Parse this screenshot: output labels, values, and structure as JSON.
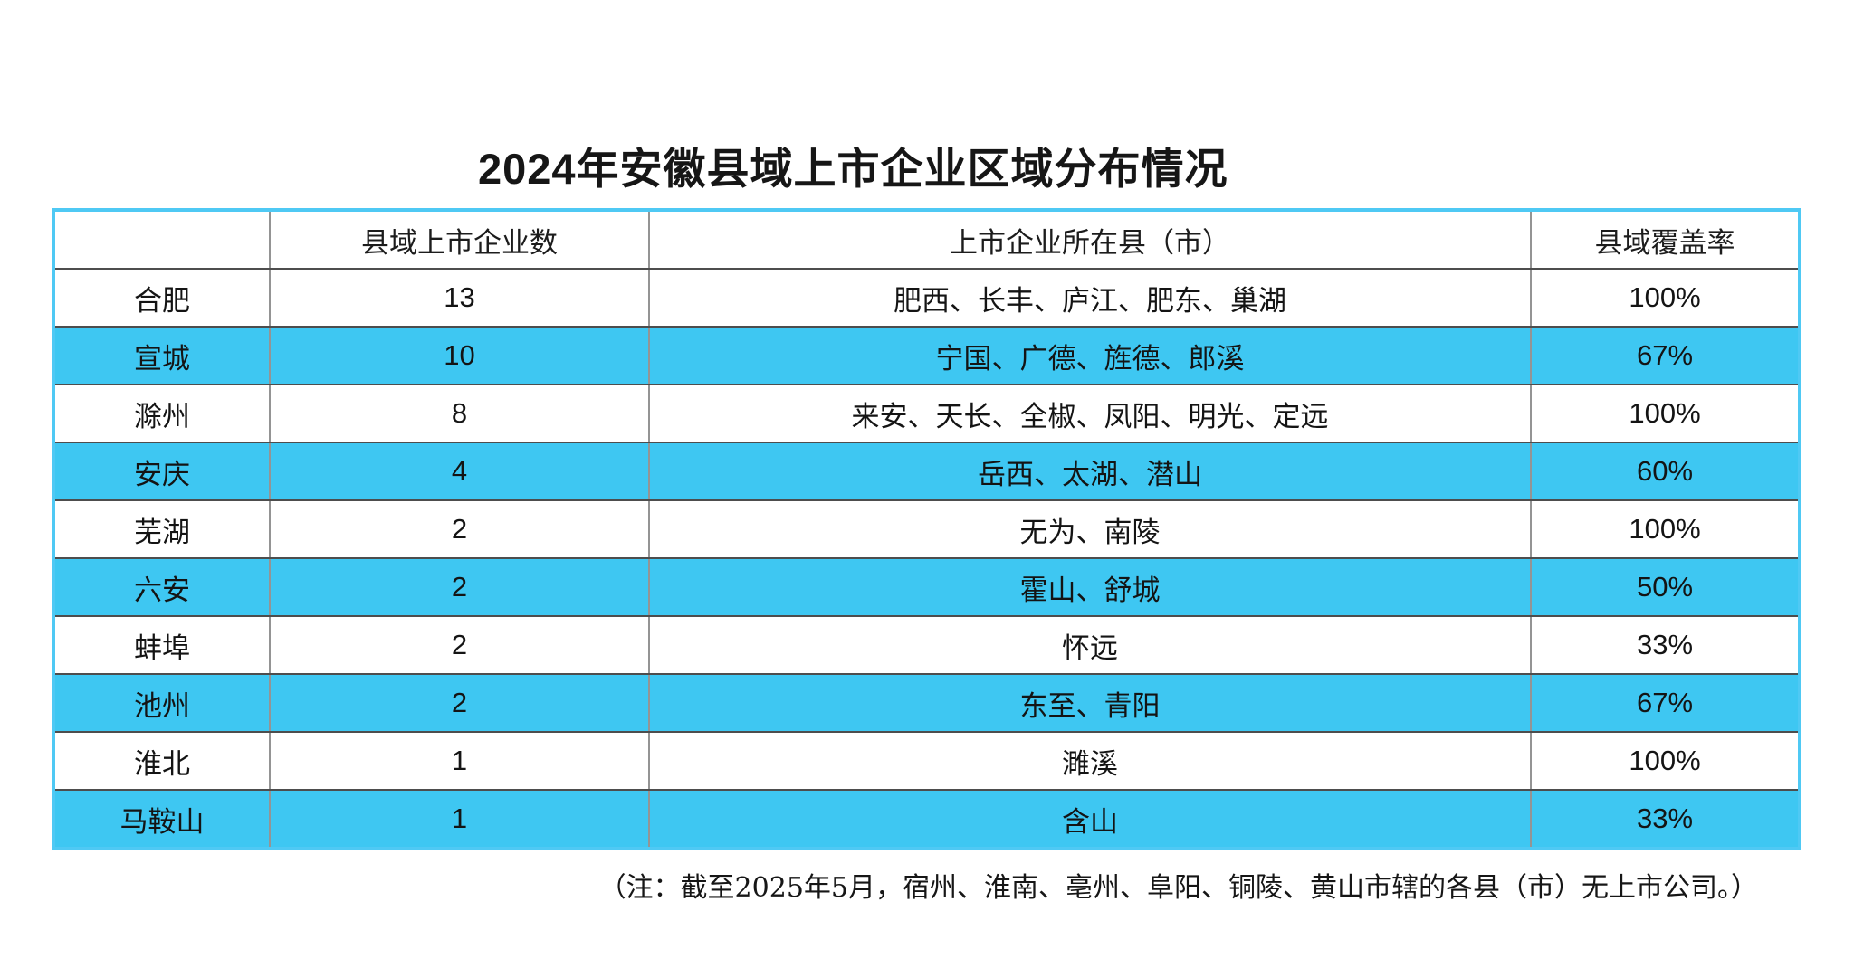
{
  "chart_data": {
    "type": "table",
    "title": "2024年安徽县域上市企业区域分布情况",
    "columns": [
      "",
      "县域上市企业数",
      "上市企业所在县（市）",
      "县域覆盖率"
    ],
    "rows": [
      {
        "city": "合肥",
        "count": "13",
        "counties": "肥西、长丰、庐江、肥东、巢湖",
        "coverage": "100%"
      },
      {
        "city": "宣城",
        "count": "10",
        "counties": "宁国、广德、旌德、郎溪",
        "coverage": "67%"
      },
      {
        "city": "滁州",
        "count": "8",
        "counties": "来安、天长、全椒、凤阳、明光、定远",
        "coverage": "100%"
      },
      {
        "city": "安庆",
        "count": "4",
        "counties": "岳西、太湖、潜山",
        "coverage": "60%"
      },
      {
        "city": "芜湖",
        "count": "2",
        "counties": "无为、南陵",
        "coverage": "100%"
      },
      {
        "city": "六安",
        "count": "2",
        "counties": "霍山、舒城",
        "coverage": "50%"
      },
      {
        "city": "蚌埠",
        "count": "2",
        "counties": "怀远",
        "coverage": "33%"
      },
      {
        "city": "池州",
        "count": "2",
        "counties": "东至、青阳",
        "coverage": "67%"
      },
      {
        "city": "淮北",
        "count": "1",
        "counties": "濉溪",
        "coverage": "100%"
      },
      {
        "city": "马鞍山",
        "count": "1",
        "counties": "含山",
        "coverage": "33%"
      }
    ],
    "footnote": "（注：截至2025年5月，宿州、淮南、亳州、阜阳、铜陵、黄山市辖的各县（市）无上市公司。）",
    "layout": {
      "legend": "none",
      "grid": "on",
      "striped_rows": "even rows highlighted"
    },
    "colors": {
      "stripe_row": "#3EC7F2",
      "frame_border": "#4FC9F4",
      "grid_line": "#4d4d4d",
      "text": "#141414",
      "background": "#ffffff"
    }
  }
}
